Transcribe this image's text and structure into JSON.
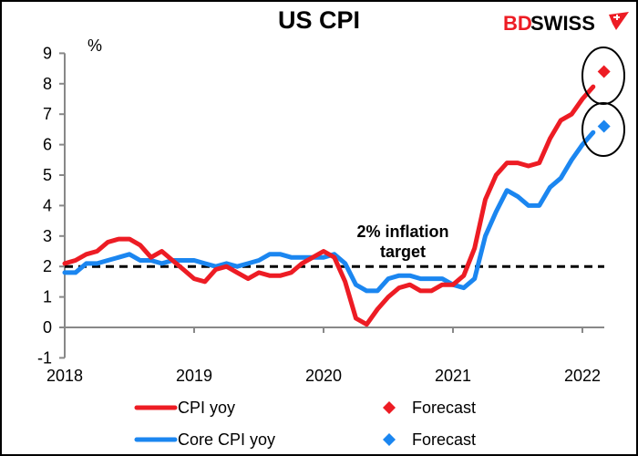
{
  "chart_data": {
    "type": "line",
    "title": "US CPI",
    "ylabel": "%",
    "xlabel": "",
    "ylim": [
      -1,
      9
    ],
    "yticks": [
      "-1",
      "0",
      "1",
      "2",
      "3",
      "4",
      "5",
      "6",
      "7",
      "8",
      "9"
    ],
    "xticks": [
      "2018",
      "2019",
      "2020",
      "2021",
      "2022"
    ],
    "x_start": "2018-01",
    "grid": false,
    "reference_line": {
      "value": 2,
      "label_line1": "2% inflation",
      "label_line2": "target",
      "style": "dashed"
    },
    "series": [
      {
        "name": "CPI yoy",
        "color": "#ed1c24",
        "values": [
          2.1,
          2.2,
          2.4,
          2.5,
          2.8,
          2.9,
          2.9,
          2.7,
          2.3,
          2.5,
          2.2,
          1.9,
          1.6,
          1.5,
          1.9,
          2.0,
          1.8,
          1.6,
          1.8,
          1.7,
          1.7,
          1.8,
          2.1,
          2.3,
          2.5,
          2.3,
          1.5,
          0.3,
          0.1,
          0.6,
          1.0,
          1.3,
          1.4,
          1.2,
          1.2,
          1.4,
          1.4,
          1.7,
          2.6,
          4.2,
          5.0,
          5.4,
          5.4,
          5.3,
          5.4,
          6.2,
          6.8,
          7.0,
          7.5,
          7.9
        ]
      },
      {
        "name": "Core CPI yoy",
        "color": "#1b86f0",
        "values": [
          1.8,
          1.8,
          2.1,
          2.1,
          2.2,
          2.3,
          2.4,
          2.2,
          2.2,
          2.1,
          2.2,
          2.2,
          2.2,
          2.1,
          2.0,
          2.1,
          2.0,
          2.1,
          2.2,
          2.4,
          2.4,
          2.3,
          2.3,
          2.3,
          2.3,
          2.4,
          2.1,
          1.4,
          1.2,
          1.2,
          1.6,
          1.7,
          1.7,
          1.6,
          1.6,
          1.6,
          1.4,
          1.3,
          1.6,
          3.0,
          3.8,
          4.5,
          4.3,
          4.0,
          4.0,
          4.6,
          4.9,
          5.5,
          6.0,
          6.4
        ]
      }
    ],
    "forecasts": [
      {
        "name": "Forecast",
        "series": "CPI yoy",
        "month_index": 50,
        "value": 8.4,
        "color": "#ed1c24"
      },
      {
        "name": "Forecast",
        "series": "Core CPI yoy",
        "month_index": 50,
        "value": 6.6,
        "color": "#1b86f0"
      }
    ],
    "legend": {
      "placement": "bottom",
      "entries": [
        {
          "label": "CPI yoy",
          "marker": "line",
          "color": "#ed1c24"
        },
        {
          "label": "Forecast",
          "marker": "diamond",
          "color": "#ed1c24"
        },
        {
          "label": "Core CPI yoy",
          "marker": "line",
          "color": "#1b86f0"
        },
        {
          "label": "Forecast",
          "marker": "diamond",
          "color": "#1b86f0"
        }
      ]
    }
  },
  "logo": {
    "part1": "BD",
    "part2": "SWISS"
  }
}
